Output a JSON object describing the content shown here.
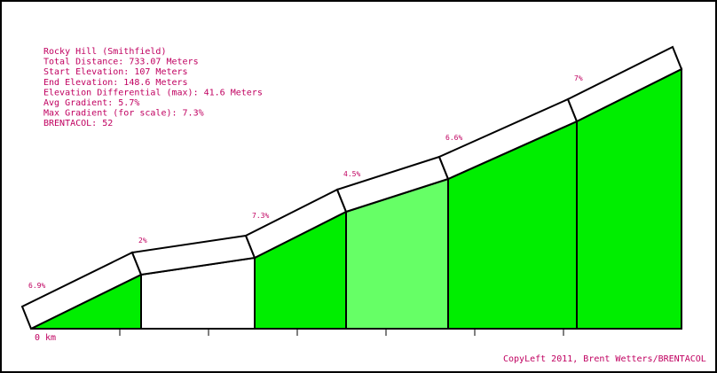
{
  "colors": {
    "text": "#c00060",
    "border": "#000000",
    "fill_green": "#00ee00",
    "fill_light_green": "#66ff66",
    "fill_white": "#ffffff"
  },
  "chart_data": {
    "type": "area",
    "info_lines": [
      "Rocky Hill (Smithfield)",
      "Total Distance: 733.07 Meters",
      "Start Elevation: 107 Meters",
      "End Elevation: 148.6 Meters",
      "Elevation Differential (max): 41.6 Meters",
      "Avg Gradient: 5.7%",
      "Max Gradient (for scale): 7.3%",
      "BRENTACOL: 52"
    ],
    "x_axis_label": "0 km",
    "credit": "CopyLeft 2011, Brent Wetters/BRENTACOL",
    "segments": [
      {
        "gradient_label": "6.9%",
        "fill": "green"
      },
      {
        "gradient_label": "2%",
        "fill": "white"
      },
      {
        "gradient_label": "7.3%",
        "fill": "green"
      },
      {
        "gradient_label": "4.5%",
        "fill": "light_green"
      },
      {
        "gradient_label": "6.6%",
        "fill": "green"
      },
      {
        "gradient_label": "7%",
        "fill": "green"
      }
    ]
  }
}
